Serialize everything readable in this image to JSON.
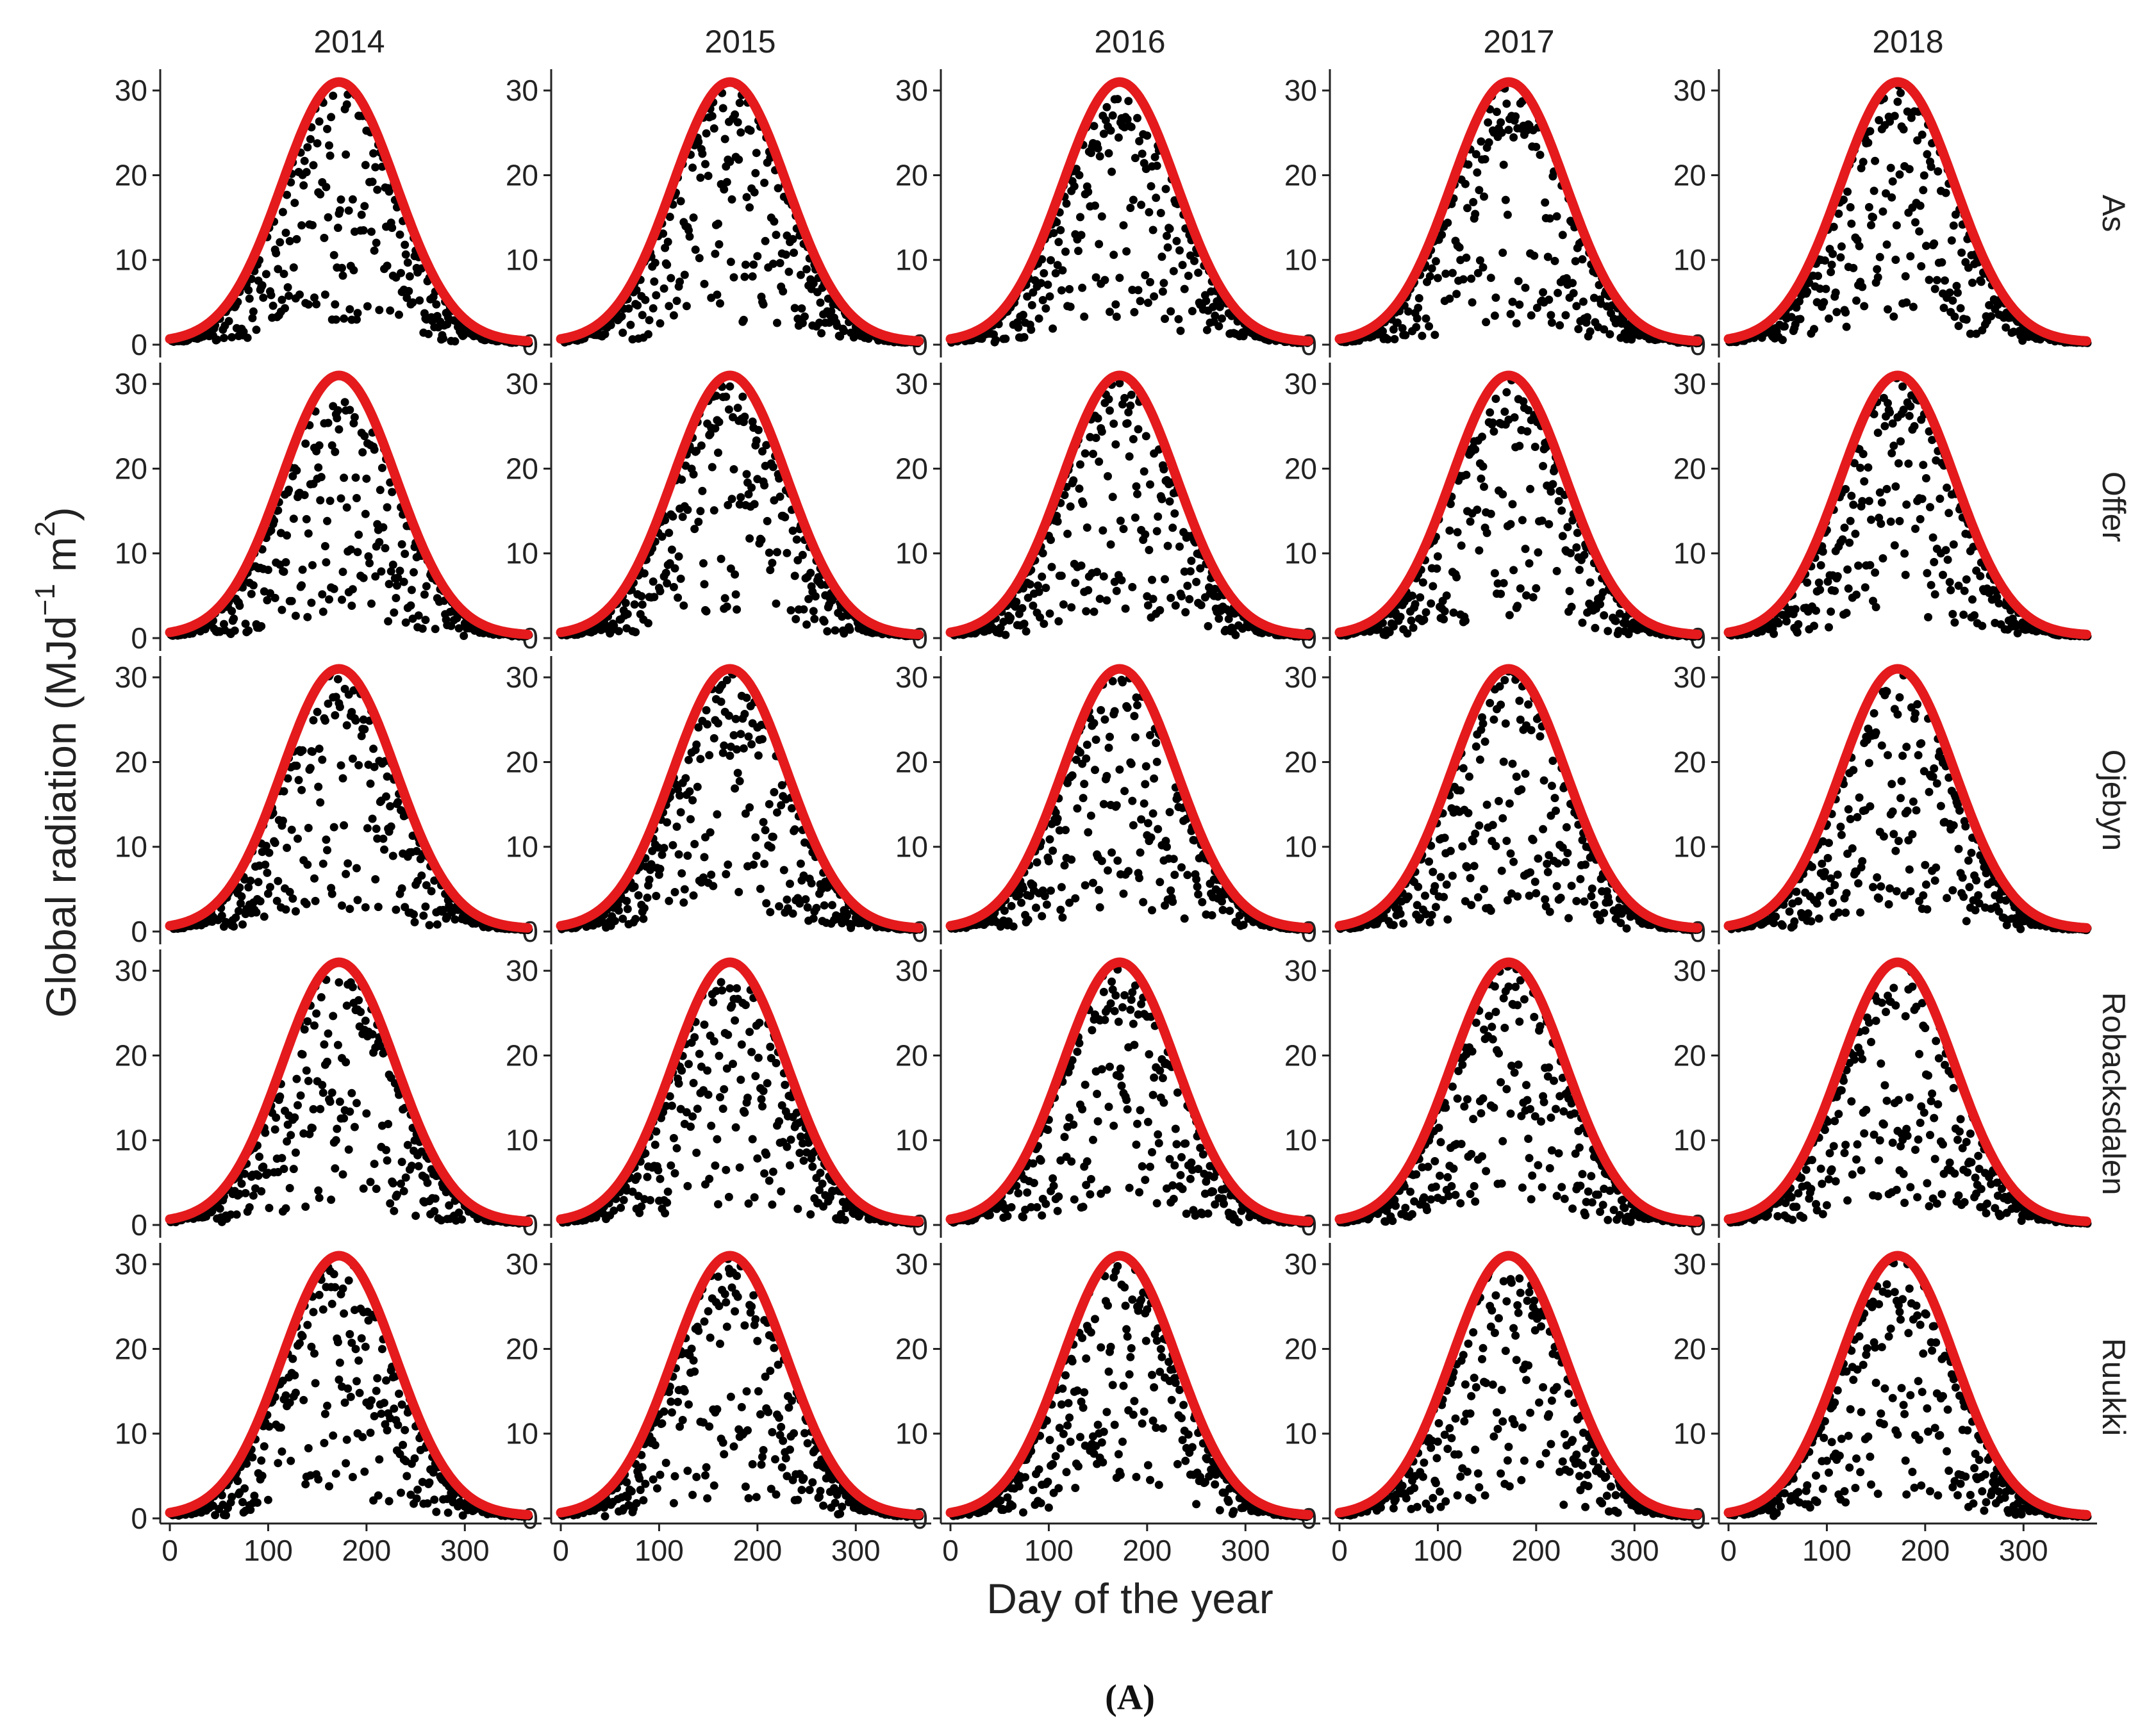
{
  "chart_data": {
    "type": "scatter",
    "layout": "facet-grid",
    "xlabel": "Day of the year",
    "ylabel": "Global radiation (MJd",
    "ylabel_sup1": "−1",
    "ylabel_mid": " m",
    "ylabel_sup2": "2",
    "ylabel_end": ")",
    "panel_label": "(A)",
    "columns": [
      "2014",
      "2015",
      "2016",
      "2017",
      "2018"
    ],
    "rows": [
      "As",
      "Offer",
      "Ojebyn",
      "Robacksdalen",
      "Ruukki"
    ],
    "xlim": [
      0,
      365
    ],
    "ylim": [
      0,
      31
    ],
    "xticks": [
      0,
      100,
      200,
      300
    ],
    "yticks": [
      0,
      10,
      20,
      30
    ],
    "grid": false,
    "series": [
      {
        "marker": "points",
        "color": "#000000",
        "description_values": "daily observed values"
      },
      {
        "marker": "line",
        "color": "#e41a1c",
        "peak_value": 31,
        "peak_day": 172,
        "min_value": 0.3
      }
    ]
  }
}
